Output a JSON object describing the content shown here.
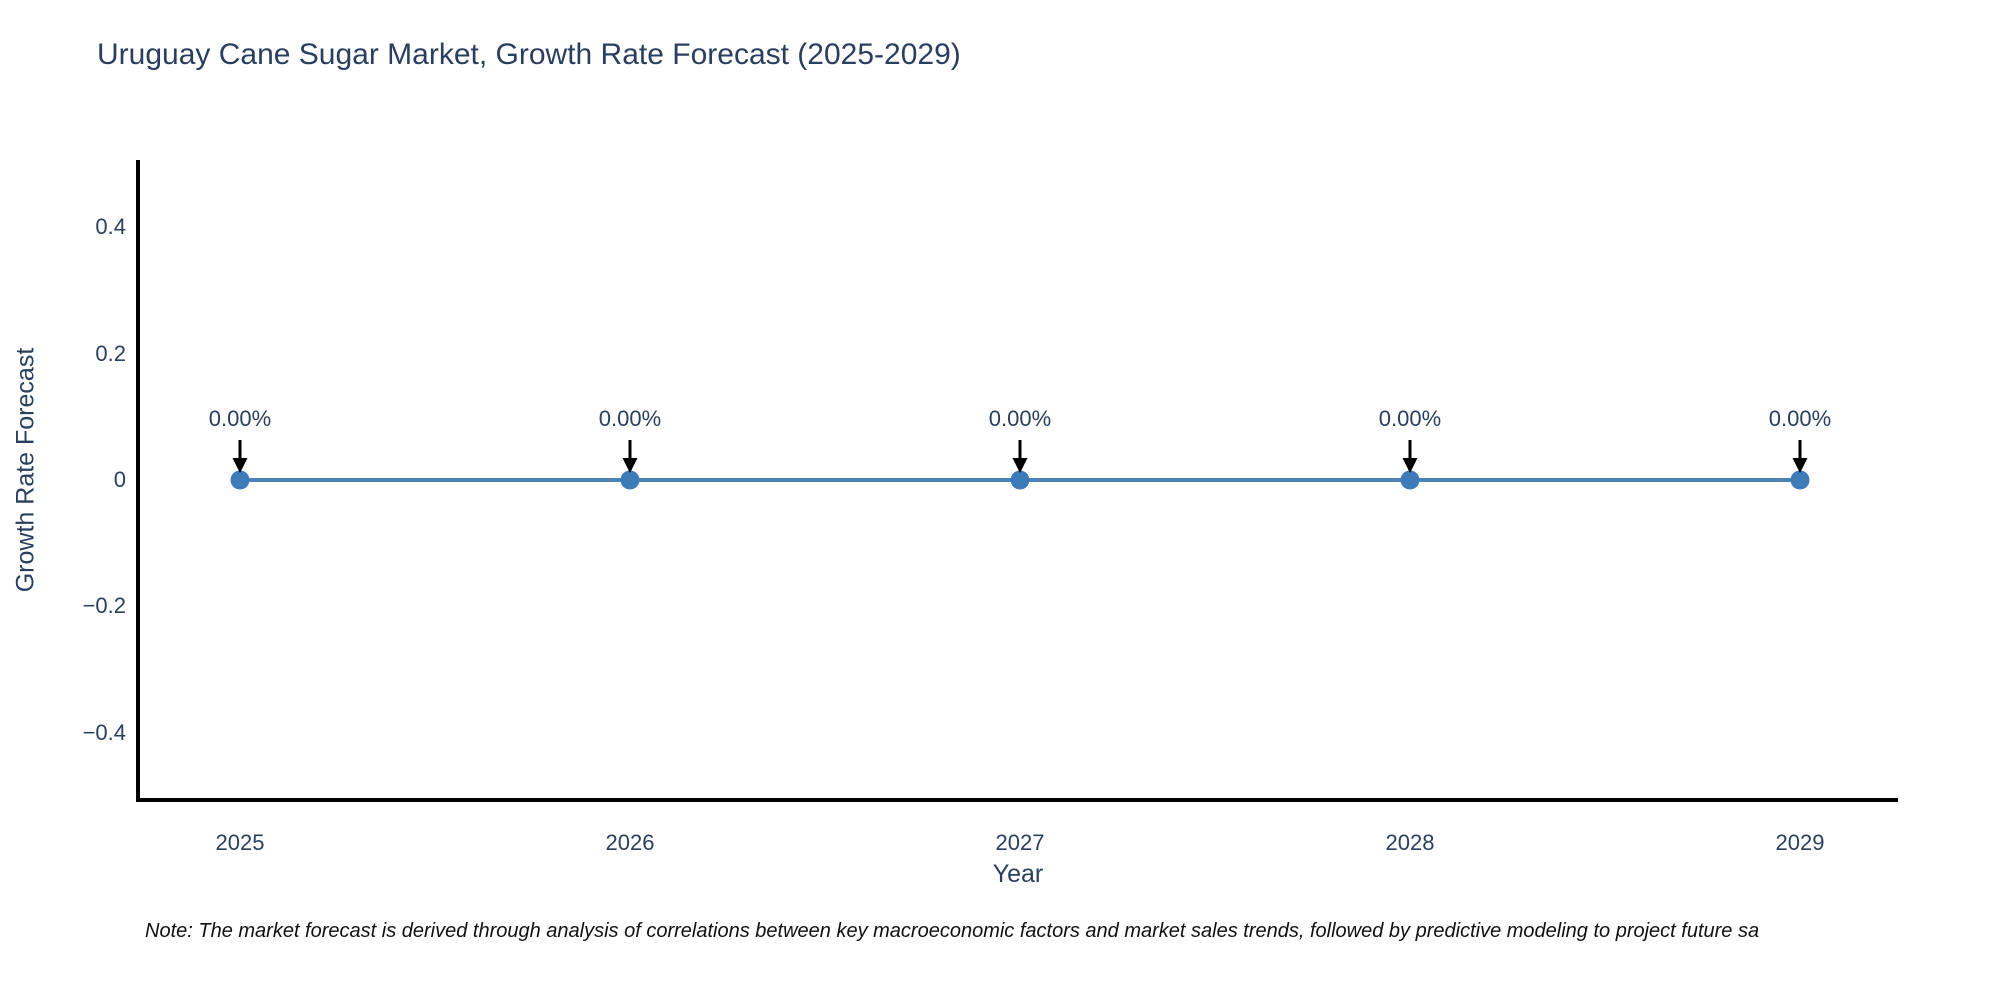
{
  "title": "Uruguay Cane Sugar Market, Growth Rate Forecast (2025-2029)",
  "note": "Note: The market forecast is derived through analysis of correlations between key macroeconomic factors and market sales trends, followed by predictive modeling to project future sa",
  "chart_data": {
    "type": "line",
    "title": "Uruguay Cane Sugar Market, Growth Rate Forecast (2025-2029)",
    "x": [
      2025,
      2026,
      2027,
      2028,
      2029
    ],
    "series": [
      {
        "name": "Growth Rate Forecast",
        "values": [
          0,
          0,
          0,
          0,
          0
        ]
      }
    ],
    "point_labels": [
      "0.00%",
      "0.00%",
      "0.00%",
      "0.00%",
      "0.00%"
    ],
    "xtick_labels": [
      "2025",
      "2026",
      "2027",
      "2028",
      "2029"
    ],
    "ytick_values": [
      0.4,
      0.2,
      0,
      -0.2,
      -0.4
    ],
    "ytick_labels": [
      "0.4",
      "0.2",
      "0",
      "−0.2",
      "−0.4"
    ],
    "xlabel": "Year",
    "ylabel": "Growth Rate Forecast",
    "ylim": [
      -0.5,
      0.5
    ],
    "grid": false,
    "legend": "none",
    "annotation_arrows": "black downward arrow from each label to its data point",
    "colors": {
      "line": "#4d82b8",
      "marker": "#3d7ab8",
      "axis": "#000000",
      "arrow": "#000000",
      "text": "#2a3f5f",
      "background": "#ffffff"
    }
  }
}
